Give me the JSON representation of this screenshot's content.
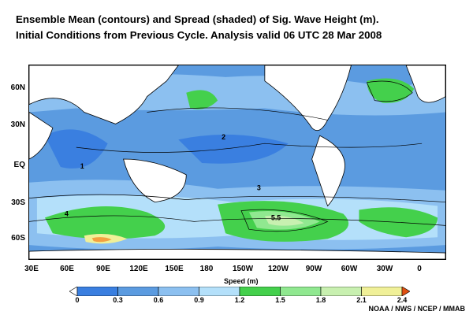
{
  "title": {
    "line1": "Ensemble Mean (contours) and Spread (shaded) of Sig. Wave  Height (m).",
    "line2": "Initial Conditions from Previous Cycle. Analysis valid 06 UTC 28 Mar 2008"
  },
  "axes": {
    "lat_labels": [
      "60N",
      "30N",
      "EQ",
      "30S",
      "60S"
    ],
    "lon_labels": [
      "30E",
      "60E",
      "90E",
      "120E",
      "150E",
      "180",
      "150W",
      "120W",
      "90W",
      "60W",
      "30W",
      "0"
    ]
  },
  "colorbar": {
    "label": "Speed (m)",
    "ticks": [
      "0",
      "0.3",
      "0.6",
      "0.9",
      "1.2",
      "1.5",
      "1.8",
      "2.1",
      "2.4"
    ],
    "colors": [
      "#3a7fe0",
      "#5b9be0",
      "#8cc0f0",
      "#b4e0fa",
      "#44d04c",
      "#90e890",
      "#c8f0b0",
      "#f0f098",
      "#f4a040",
      "#e05010"
    ]
  },
  "contour_labels": [
    "1",
    "2",
    "3",
    "4",
    "5.5"
  ],
  "credit": "NOAA / NWS / NCEP / MMAB"
}
